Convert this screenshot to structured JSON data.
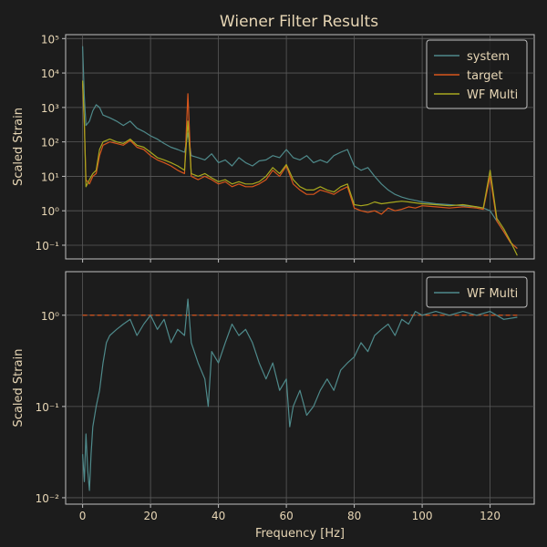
{
  "chart_data": [
    {
      "type": "line",
      "title": "Wiener Filter Results",
      "xlabel": "",
      "ylabel": "Scaled Strain",
      "yscale": "log",
      "xlim": [
        -5,
        133
      ],
      "ylim": [
        0.04,
        130000
      ],
      "xticks": [
        0,
        20,
        40,
        60,
        80,
        100,
        120
      ],
      "yticks": [
        {
          "value": 0.1,
          "label": "10⁻¹"
        },
        {
          "value": 1,
          "label": "10⁰"
        },
        {
          "value": 10,
          "label": "10¹"
        },
        {
          "value": 100,
          "label": "10²"
        },
        {
          "value": 1000,
          "label": "10³"
        },
        {
          "value": 10000,
          "label": "10⁴"
        },
        {
          "value": 100000,
          "label": "10⁵"
        }
      ],
      "grid": true,
      "legend_position": "top-right",
      "series": [
        {
          "name": "system",
          "color": "#4f8a8b",
          "x": [
            0,
            0.5,
            1,
            2,
            3,
            4,
            5,
            6,
            8,
            10,
            12,
            14,
            16,
            18,
            20,
            22,
            24,
            26,
            28,
            30,
            31,
            32,
            34,
            36,
            38,
            40,
            42,
            44,
            46,
            48,
            50,
            52,
            54,
            56,
            58,
            60,
            62,
            64,
            66,
            68,
            70,
            72,
            74,
            76,
            78,
            80,
            82,
            84,
            86,
            88,
            90,
            92,
            94,
            96,
            98,
            100,
            104,
            108,
            112,
            116,
            118,
            120,
            122,
            124,
            126,
            128
          ],
          "y": [
            60000,
            2000,
            300,
            400,
            800,
            1200,
            1000,
            600,
            500,
            400,
            300,
            400,
            250,
            200,
            150,
            120,
            90,
            70,
            60,
            50,
            180,
            40,
            35,
            30,
            45,
            25,
            30,
            20,
            35,
            25,
            20,
            28,
            30,
            40,
            35,
            60,
            35,
            30,
            40,
            25,
            30,
            25,
            40,
            50,
            60,
            20,
            15,
            18,
            10,
            6,
            4,
            3,
            2.5,
            2.2,
            2,
            1.8,
            1.6,
            1.5,
            1.4,
            1.3,
            1.2,
            1.0,
            0.5,
            0.25,
            0.12,
            0.08
          ]
        },
        {
          "name": "target",
          "color": "#d9561c",
          "x": [
            0,
            0.5,
            1,
            2,
            3,
            4,
            5,
            6,
            8,
            10,
            12,
            14,
            16,
            18,
            20,
            22,
            24,
            26,
            28,
            30,
            31,
            32,
            34,
            36,
            38,
            40,
            42,
            44,
            46,
            48,
            50,
            52,
            54,
            56,
            58,
            60,
            62,
            64,
            66,
            68,
            70,
            72,
            74,
            76,
            78,
            80,
            82,
            84,
            86,
            88,
            90,
            92,
            94,
            96,
            98,
            100,
            104,
            108,
            112,
            116,
            118,
            120,
            122,
            124,
            126,
            128
          ],
          "y": [
            5000,
            300,
            8,
            6,
            10,
            12,
            40,
            80,
            100,
            90,
            80,
            110,
            70,
            60,
            40,
            30,
            25,
            20,
            15,
            12,
            2500,
            10,
            8,
            10,
            8,
            6,
            7,
            5,
            6,
            5,
            5,
            6,
            8,
            15,
            10,
            20,
            6,
            4,
            3,
            3,
            4,
            3.5,
            3,
            4,
            5,
            1.2,
            1.0,
            0.9,
            1.0,
            0.8,
            1.2,
            1.0,
            1.1,
            1.3,
            1.2,
            1.4,
            1.3,
            1.2,
            1.3,
            1.2,
            1.1,
            10,
            0.5,
            0.25,
            0.12,
            0.08
          ]
        },
        {
          "name": "WF Multi",
          "color": "#a8a81e",
          "x": [
            0,
            0.5,
            1,
            2,
            3,
            4,
            5,
            6,
            8,
            10,
            12,
            14,
            16,
            18,
            20,
            22,
            24,
            26,
            28,
            30,
            31,
            32,
            34,
            36,
            38,
            40,
            42,
            44,
            46,
            48,
            50,
            52,
            54,
            56,
            58,
            60,
            62,
            64,
            66,
            68,
            70,
            72,
            74,
            76,
            78,
            80,
            82,
            84,
            86,
            88,
            90,
            92,
            94,
            96,
            98,
            100,
            104,
            108,
            112,
            116,
            118,
            120,
            122,
            124,
            126,
            128
          ],
          "y": [
            6000,
            400,
            5,
            8,
            12,
            15,
            60,
            100,
            120,
            100,
            90,
            120,
            80,
            70,
            50,
            35,
            30,
            25,
            20,
            15,
            400,
            12,
            10,
            12,
            9,
            7,
            8,
            6,
            7,
            6,
            6,
            7,
            10,
            18,
            12,
            22,
            8,
            5,
            4,
            4,
            5,
            4,
            3.5,
            5,
            6,
            1.5,
            1.4,
            1.5,
            1.8,
            1.6,
            1.7,
            1.8,
            1.9,
            1.8,
            1.7,
            1.6,
            1.5,
            1.4,
            1.5,
            1.3,
            1.2,
            15,
            0.6,
            0.3,
            0.13,
            0.05
          ]
        }
      ]
    },
    {
      "type": "line",
      "title": "",
      "xlabel": "Frequency [Hz]",
      "ylabel": "Scaled Strain",
      "yscale": "log",
      "xlim": [
        -5,
        133
      ],
      "ylim": [
        0.0085,
        3
      ],
      "xticks": [
        0,
        20,
        40,
        60,
        80,
        100,
        120
      ],
      "yticks": [
        {
          "value": 0.01,
          "label": "10⁻²"
        },
        {
          "value": 0.1,
          "label": "10⁻¹"
        },
        {
          "value": 1,
          "label": "10⁰"
        }
      ],
      "grid": true,
      "legend_position": "top-right",
      "reference_line": {
        "y": 1,
        "color": "#d9561c",
        "style": "dashed"
      },
      "series": [
        {
          "name": "WF Multi",
          "color": "#4f8a8b",
          "x": [
            0,
            0.5,
            1,
            1.5,
            2,
            2.5,
            3,
            4,
            5,
            6,
            7,
            8,
            10,
            12,
            14,
            16,
            18,
            20,
            22,
            24,
            26,
            28,
            30,
            31,
            32,
            34,
            36,
            37,
            38,
            40,
            42,
            44,
            46,
            48,
            50,
            52,
            54,
            56,
            58,
            60,
            61,
            62,
            64,
            66,
            68,
            70,
            72,
            74,
            76,
            78,
            80,
            82,
            84,
            86,
            88,
            90,
            92,
            94,
            96,
            98,
            100,
            104,
            108,
            112,
            116,
            120,
            124,
            128
          ],
          "y": [
            0.03,
            0.015,
            0.05,
            0.02,
            0.012,
            0.03,
            0.06,
            0.1,
            0.15,
            0.3,
            0.5,
            0.6,
            0.7,
            0.8,
            0.9,
            0.6,
            0.8,
            1.0,
            0.7,
            0.9,
            0.5,
            0.7,
            0.6,
            1.5,
            0.5,
            0.3,
            0.2,
            0.1,
            0.4,
            0.3,
            0.5,
            0.8,
            0.6,
            0.7,
            0.5,
            0.3,
            0.2,
            0.3,
            0.15,
            0.2,
            0.06,
            0.1,
            0.15,
            0.08,
            0.1,
            0.15,
            0.2,
            0.15,
            0.25,
            0.3,
            0.35,
            0.5,
            0.4,
            0.6,
            0.7,
            0.8,
            0.6,
            0.9,
            0.8,
            1.1,
            1.0,
            1.1,
            1.0,
            1.1,
            1.0,
            1.1,
            0.9,
            0.95
          ]
        }
      ]
    }
  ],
  "figure": {
    "background": "#1c1c1c",
    "text_color": "#e7d6b5",
    "grid_color": "#5a5a5a",
    "axes_edge_color": "#bfbfbf"
  }
}
